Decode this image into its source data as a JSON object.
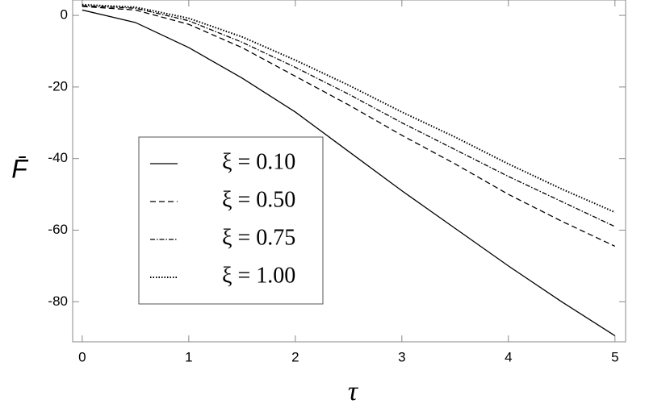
{
  "chart_data": {
    "type": "line",
    "x_label": "τ",
    "y_label": "F̄",
    "x": [
      0,
      0.5,
      1,
      1.5,
      2,
      2.5,
      3,
      3.5,
      4,
      4.5,
      5
    ],
    "series": [
      {
        "name": "ξ = 0.10",
        "color": "#000000",
        "dash": "solid",
        "values": [
          1.5,
          -2,
          -9,
          -17.5,
          -27,
          -38,
          -49,
          -59.5,
          -70,
          -80,
          -89.5
        ]
      },
      {
        "name": "ξ = 0.50",
        "color": "#000000",
        "dash": "dashed",
        "values": [
          2.5,
          1.5,
          -2.5,
          -9,
          -17,
          -25,
          -33.5,
          -41.5,
          -50,
          -57.5,
          -64.5
        ]
      },
      {
        "name": "ξ = 0.75",
        "color": "#000000",
        "dash": "dashdot",
        "values": [
          2.7,
          2,
          -1.5,
          -7.5,
          -14.5,
          -22,
          -30,
          -37.5,
          -45,
          -52,
          -59
        ]
      },
      {
        "name": "ξ = 1.00",
        "color": "#000000",
        "dash": "dotted",
        "values": [
          3,
          2.3,
          -0.8,
          -6,
          -12.5,
          -19.5,
          -27,
          -34,
          -41.5,
          -48.5,
          -55
        ]
      }
    ],
    "xlim": [
      -0.09,
      5.1
    ],
    "ylim": [
      -91.2,
      4.3
    ],
    "xticks": [
      0,
      1,
      2,
      3,
      4,
      5
    ],
    "yticks": [
      0,
      -20,
      -40,
      -60,
      -80
    ],
    "legend": "lower-left",
    "grid": false
  }
}
